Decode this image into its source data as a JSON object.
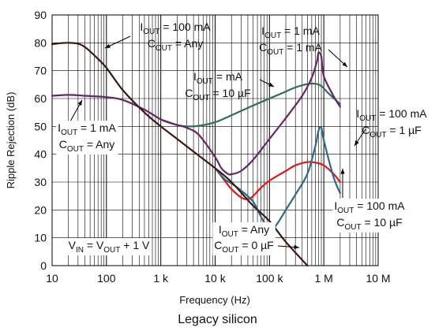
{
  "caption": "Legacy silicon",
  "chart_data": {
    "type": "line",
    "title": "",
    "xlabel": "Frequency (Hz)",
    "ylabel": "Ripple Rejection (dB)",
    "x_scale": "log",
    "xlim": [
      10,
      10000000
    ],
    "ylim": [
      0,
      90
    ],
    "grid": true,
    "x_tick_labels": [
      "10",
      "100",
      "1 k",
      "10 k",
      "100 k",
      "1 M",
      "10 M"
    ],
    "y_ticks": [
      0,
      10,
      20,
      30,
      40,
      50,
      60,
      70,
      80,
      90
    ],
    "colors": {
      "brown": "#3a1a12",
      "purple": "#6b2368",
      "green": "#2f7050",
      "red": "#e01818",
      "blue": "#2e6a88"
    },
    "series": [
      {
        "color": "brown",
        "x": [
          10,
          15,
          20,
          30,
          40,
          60,
          100,
          200,
          500,
          1000,
          2000,
          5000,
          10000,
          20000,
          50000,
          100000,
          200000,
          500000
        ],
        "y": [
          79.5,
          79.9,
          80.0,
          79.7,
          78.5,
          75.5,
          71,
          63,
          55,
          50,
          45.5,
          39.5,
          35,
          30,
          21.5,
          16,
          8.5,
          0
        ]
      },
      {
        "color": "purple",
        "x": [
          10,
          20,
          40,
          100,
          200,
          500,
          1000,
          1500,
          2000,
          3000,
          5000,
          10000,
          13000,
          17000,
          20000,
          30000,
          50000,
          100000,
          200000,
          400000,
          600000,
          750000,
          800000,
          900000,
          1000000,
          1500000,
          2000000
        ],
        "y": [
          61,
          61.3,
          61,
          60.5,
          59.5,
          56,
          52.5,
          51.2,
          50.5,
          49.5,
          47,
          39,
          35,
          33,
          32.8,
          34,
          38,
          45.5,
          53,
          61,
          67.5,
          73.5,
          76.5,
          75,
          68,
          61,
          57
        ]
      },
      {
        "color": "green",
        "x": [
          1000,
          2000,
          3000,
          5000,
          10000,
          20000,
          50000,
          100000,
          200000,
          300000,
          500000,
          700000,
          900000,
          1200000,
          2000000
        ],
        "y": [
          52.5,
          50.5,
          50,
          50.2,
          51.5,
          54,
          57.5,
          60,
          62.5,
          64,
          65.2,
          65.3,
          64.5,
          62,
          58
        ]
      },
      {
        "color": "red",
        "x": [
          10000,
          15000,
          20000,
          30000,
          40000,
          50000,
          70000,
          100000,
          200000,
          300000,
          500000,
          700000,
          1000000,
          1500000,
          2000000
        ],
        "y": [
          35,
          30.5,
          27.5,
          24.5,
          23.8,
          25,
          28,
          30.5,
          34,
          36,
          37.2,
          37,
          36,
          33,
          30
        ]
      },
      {
        "color": "blue",
        "x": [
          10000,
          15000,
          20000,
          30000,
          50000,
          70000,
          90000,
          100000,
          120000,
          150000,
          200000,
          300000,
          500000,
          700000,
          800000,
          900000,
          1000000,
          1500000,
          2000000
        ],
        "y": [
          35,
          31,
          29.5,
          27,
          23,
          17.5,
          14,
          13,
          13.5,
          16,
          20,
          25.5,
          33,
          43,
          48.5,
          49.5,
          45,
          32,
          26
        ]
      }
    ],
    "annotations": [
      {
        "lines": [
          {
            "main": "I",
            "sub": "OUT",
            "rest": " = 100 mA"
          },
          {
            "main": "C",
            "sub": "OUT",
            "rest": " = Any"
          }
        ]
      },
      {
        "lines": [
          {
            "main": "I",
            "sub": "OUT",
            "rest": " = 1 mA"
          },
          {
            "main": "C",
            "sub": "OUT",
            "rest": " = 1 mA"
          }
        ]
      },
      {
        "lines": [
          {
            "main": "I",
            "sub": "OUT",
            "rest": " = mA"
          },
          {
            "main": "C",
            "sub": "OUT",
            "rest": " = 10 µF"
          }
        ]
      },
      {
        "lines": [
          {
            "main": "I",
            "sub": "OUT",
            "rest": " = 100 mA"
          },
          {
            "main": "C",
            "sub": "OUT",
            "rest": " = 1 µF"
          }
        ]
      },
      {
        "lines": [
          {
            "main": "I",
            "sub": "OUT",
            "rest": " = 1 mA"
          },
          {
            "main": "C",
            "sub": "OUT",
            "rest": " = Any"
          }
        ]
      },
      {
        "lines": [
          {
            "main": "I",
            "sub": "OUT",
            "rest": " = 100 mA"
          },
          {
            "main": "C",
            "sub": "OUT",
            "rest": " = 10 µF"
          }
        ]
      },
      {
        "lines": [
          {
            "main": "I",
            "sub": "OUT",
            "rest": " = Any"
          },
          {
            "main": "C",
            "sub": "OUT",
            "rest": " = 0 µF"
          }
        ]
      },
      {
        "lines": [
          {
            "main": "V",
            "sub": "IN",
            "rest": " = V",
            "sub2": "OUT",
            "rest2": " + 1 V"
          }
        ]
      }
    ]
  }
}
